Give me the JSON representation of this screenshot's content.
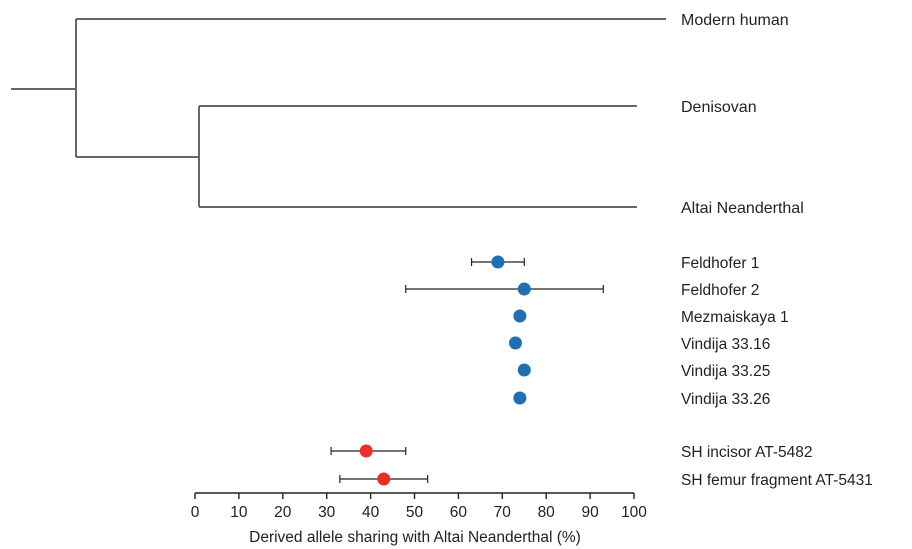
{
  "chart_data": {
    "type": "scatter",
    "title": "",
    "xlabel": "Derived allele sharing with Altai Neanderthal (%)",
    "xlim": [
      0,
      100
    ],
    "xticks": [
      0,
      10,
      20,
      30,
      40,
      50,
      60,
      70,
      80,
      90,
      100
    ],
    "grid": false,
    "tree": {
      "taxa": [
        "Modern human",
        "Denisovan",
        "Altai Neanderthal"
      ],
      "topology": "((Denisovan, Altai Neanderthal), Modern human)"
    },
    "colors": {
      "group_a": "#1f6fb3",
      "group_b": "#e8302a",
      "tree": "#666666",
      "error_bar": "#222222"
    },
    "series": [
      {
        "color": "#1f6fb3",
        "points": [
          {
            "label": "Feldhofer 1",
            "value": 69,
            "ci": [
              63,
              75
            ]
          },
          {
            "label": "Feldhofer 2",
            "value": 75,
            "ci": [
              48,
              93
            ]
          },
          {
            "label": "Mezmaiskaya 1",
            "value": 74,
            "ci": null
          },
          {
            "label": "Vindija 33.16",
            "value": 73,
            "ci": null
          },
          {
            "label": "Vindija 33.25",
            "value": 75,
            "ci": null
          },
          {
            "label": "Vindija 33.26",
            "value": 74,
            "ci": null
          }
        ]
      },
      {
        "color": "#e8302a",
        "points": [
          {
            "label": "SH incisor AT-5482",
            "value": 39,
            "ci": [
              31,
              48
            ]
          },
          {
            "label": "SH femur fragment AT-5431",
            "value": 43,
            "ci": [
              33,
              53
            ]
          }
        ]
      }
    ]
  }
}
